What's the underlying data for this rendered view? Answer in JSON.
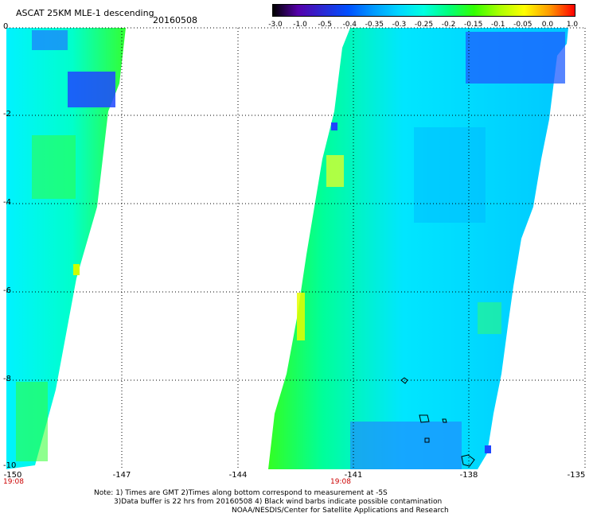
{
  "header": {
    "title": "ASCAT 25KM MLE-1 descending",
    "date": "20160508"
  },
  "colorbar": {
    "labels": [
      "-3.0",
      "-1.0",
      "-0.5",
      "-0.4",
      "-0.35",
      "-0.3",
      "-0.25",
      "-0.2",
      "-0.15",
      "-0.1",
      "-0.05",
      "0.0",
      "1.0"
    ],
    "colors": [
      "#000000",
      "#5500aa",
      "#2a2ad4",
      "#0050ff",
      "#009aff",
      "#00d6ff",
      "#00ffe0",
      "#00ff7a",
      "#33ff00",
      "#aaff00",
      "#ffff00",
      "#ff9900",
      "#ff0000"
    ]
  },
  "axes": {
    "lat_labels": [
      "0",
      "-2",
      "-4",
      "-6",
      "-8",
      "-10"
    ],
    "lon_labels": [
      "-150",
      "-147",
      "-144",
      "-141",
      "-138",
      "-135"
    ],
    "time_labels": [
      "19:08",
      "19:08"
    ]
  },
  "notes": {
    "line1": "Note: 1) Times are GMT 2)Times along bottom correspond to measurement at -5S",
    "line2": "3)Data buffer is 22 hrs from 20160508 4) Black wind barbs indicate possible contamination",
    "line3": "NOAA/NESDIS/Center for Satellite Applications and Research"
  }
}
